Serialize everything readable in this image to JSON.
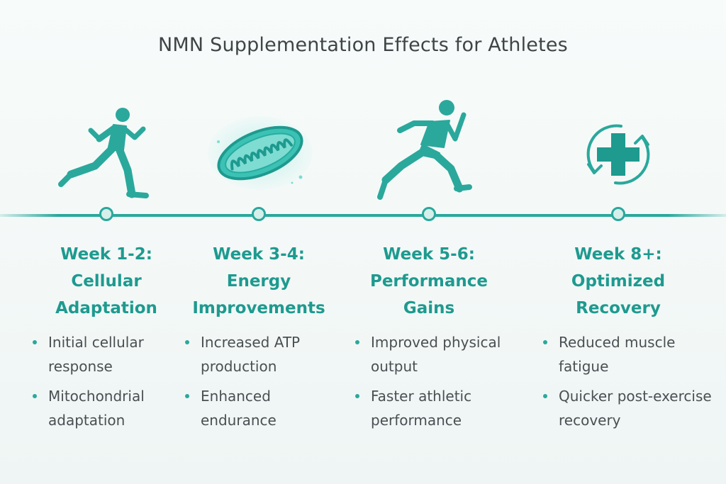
{
  "title": "NMN Supplementation Effects for Athletes",
  "colors": {
    "accent": "#2aa89c",
    "title_text": "#3f4447",
    "body_text": "#4a4f52",
    "stage_title": "#1e9a8f"
  },
  "stages": [
    {
      "icon": "runner-icon",
      "title_lines": [
        "Week 1-2:",
        "Cellular",
        "Adaptation"
      ],
      "items": [
        "Initial cellular response",
        "Mitochondrial adaptation"
      ]
    },
    {
      "icon": "mitochondria-icon",
      "title_lines": [
        "Week 3-4:",
        "Energy",
        "Improvements"
      ],
      "items": [
        "Increased ATP production",
        "Enhanced endurance"
      ]
    },
    {
      "icon": "sprinter-icon",
      "title_lines": [
        "Week 5-6:",
        "Performance",
        "Gains"
      ],
      "items": [
        "Improved physical output",
        "Faster athletic performance"
      ]
    },
    {
      "icon": "recovery-cross-icon",
      "title_lines": [
        "Week 8+:",
        "Optimized",
        "Recovery"
      ],
      "items": [
        "Reduced muscle fatigue",
        "Quicker post-exercise recovery"
      ]
    }
  ]
}
